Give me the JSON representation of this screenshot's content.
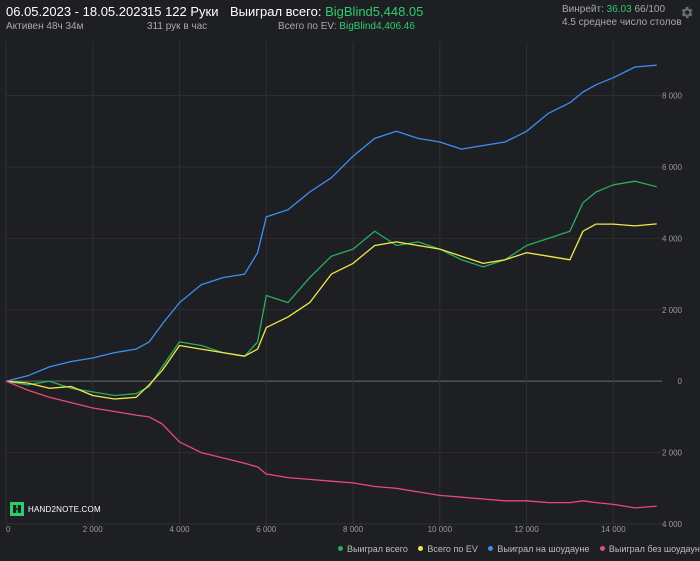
{
  "header": {
    "date_range": "06.05.2023 - 18.05.2023",
    "active": "Активен 48ч 34м",
    "hands": "15 122 Руки",
    "hands_per_hour": "311 рук в час",
    "won_total_label": "Выиграл всего:",
    "won_total_value": "BigBlind5,448.05",
    "ev_total_label": "Всего по EV:",
    "ev_total_value": "BigBlind4,406.46",
    "winrate_label": "Винрейт:",
    "winrate_value": "36.03",
    "winrate_unit": "66/100",
    "avg_tables": "4.5 среднее число столов"
  },
  "logo_text": "HAND2NOTE.COM",
  "icons": {
    "settings": "gear-icon"
  },
  "chart_data": {
    "type": "line",
    "xlim": [
      0,
      15122
    ],
    "ylim": [
      -4000,
      9500
    ],
    "x_ticks": [
      0,
      2000,
      4000,
      6000,
      8000,
      10000,
      12000,
      14000
    ],
    "x_tick_labels": [
      "0",
      "2 000",
      "4 000",
      "6 000",
      "8 000",
      "10 000",
      "12 000",
      "14 000"
    ],
    "y_ticks": [
      8000,
      6000,
      4000,
      2000,
      0,
      -2000,
      -4000
    ],
    "y_tick_labels": [
      "8 000",
      "6 000",
      "4 000",
      "2 000",
      "0",
      "2 000",
      "4 000"
    ],
    "grid": true,
    "legend_position": "bottom-right",
    "x": [
      0,
      500,
      1000,
      1500,
      2000,
      2500,
      3000,
      3300,
      3600,
      4000,
      4500,
      5000,
      5500,
      5800,
      6000,
      6500,
      7000,
      7500,
      8000,
      8500,
      9000,
      9500,
      10000,
      10500,
      11000,
      11500,
      12000,
      12500,
      13000,
      13300,
      13600,
      14000,
      14500,
      15000
    ],
    "series": [
      {
        "name": "Выиграл всего",
        "color": "#27ae60",
        "values": [
          0,
          -100,
          0,
          -200,
          -300,
          -400,
          -350,
          -150,
          400,
          1100,
          1000,
          800,
          700,
          1100,
          2400,
          2200,
          2900,
          3500,
          3700,
          4200,
          3800,
          3900,
          3700,
          3400,
          3200,
          3400,
          3800,
          4000,
          4200,
          5000,
          5300,
          5500,
          5600,
          5448
        ]
      },
      {
        "name": "Всего по EV",
        "color": "#f1e84a",
        "values": [
          0,
          -50,
          -200,
          -150,
          -400,
          -500,
          -450,
          -100,
          300,
          1000,
          900,
          800,
          700,
          900,
          1500,
          1800,
          2200,
          3000,
          3300,
          3800,
          3900,
          3800,
          3700,
          3500,
          3300,
          3400,
          3600,
          3500,
          3400,
          4200,
          4400,
          4400,
          4350,
          4406
        ]
      },
      {
        "name": "Выиграл на шоудауне",
        "color": "#3d8ff2",
        "values": [
          0,
          150,
          400,
          550,
          650,
          800,
          900,
          1100,
          1600,
          2200,
          2700,
          2900,
          3000,
          3600,
          4600,
          4800,
          5300,
          5700,
          6300,
          6800,
          7000,
          6800,
          6700,
          6500,
          6600,
          6700,
          7000,
          7500,
          7800,
          8100,
          8300,
          8500,
          8800,
          8850
        ]
      },
      {
        "name": "Выиграл без шоудауна",
        "color": "#e84a7a",
        "values": [
          0,
          -250,
          -450,
          -600,
          -750,
          -850,
          -950,
          -1000,
          -1200,
          -1700,
          -2000,
          -2150,
          -2300,
          -2400,
          -2600,
          -2700,
          -2750,
          -2800,
          -2850,
          -2950,
          -3000,
          -3100,
          -3200,
          -3250,
          -3300,
          -3350,
          -3350,
          -3400,
          -3400,
          -3350,
          -3400,
          -3450,
          -3550,
          -3500
        ]
      }
    ]
  }
}
